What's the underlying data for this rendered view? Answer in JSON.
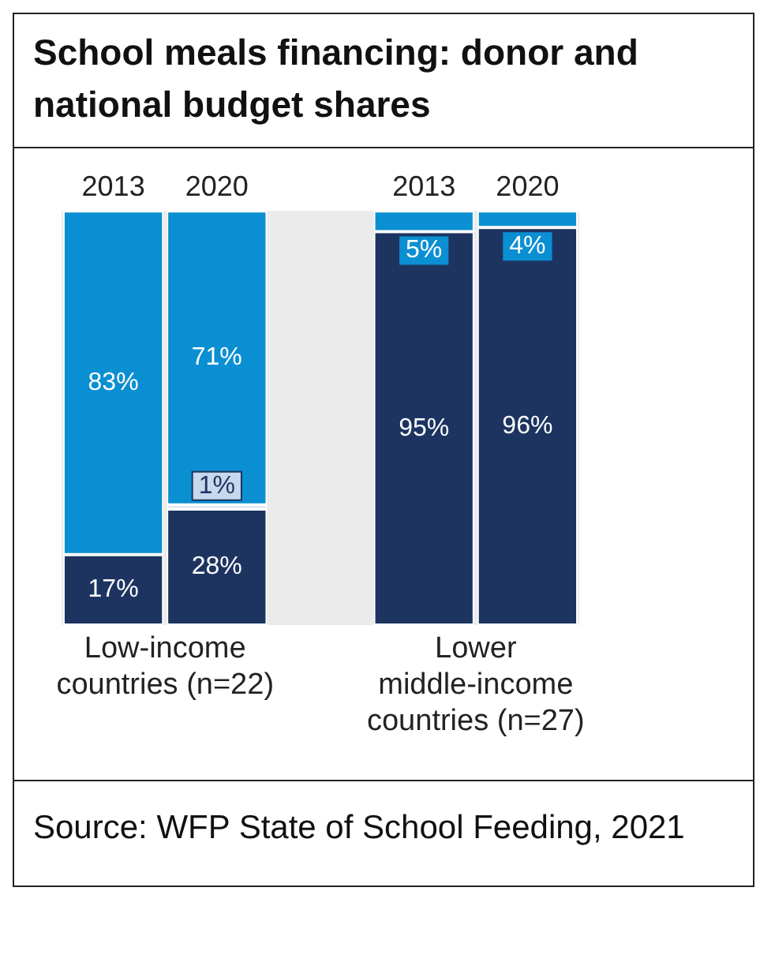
{
  "chart_data": {
    "type": "bar",
    "title": "School meals financing: donor and national budget shares",
    "categories": [
      "2013",
      "2020",
      null,
      "2013",
      "2020"
    ],
    "stacked": true,
    "ylim": [
      0,
      100
    ],
    "tick_labels": "x",
    "legend": false,
    "series": [
      {
        "color": "#1d3461",
        "values": [
          17,
          28,
          null,
          95,
          96
        ],
        "value_labels": [
          "17%",
          "28%",
          null,
          "95%",
          "96%"
        ]
      },
      {
        "color": "#c6d9ec",
        "values": [
          null,
          1,
          null,
          null,
          null
        ],
        "value_labels": [
          null,
          "1%",
          null,
          null,
          null
        ]
      },
      {
        "color": "#0b8fd3",
        "values": [
          83,
          71,
          null,
          5,
          4
        ],
        "value_labels": [
          "83%",
          "71%",
          null,
          "5%",
          "4%"
        ]
      }
    ],
    "annotations": [
      "Low-income countries (n=22)",
      "Lower middle-income countries (n=27)",
      "Source: WFP State of School Feeding, 2021"
    ]
  }
}
